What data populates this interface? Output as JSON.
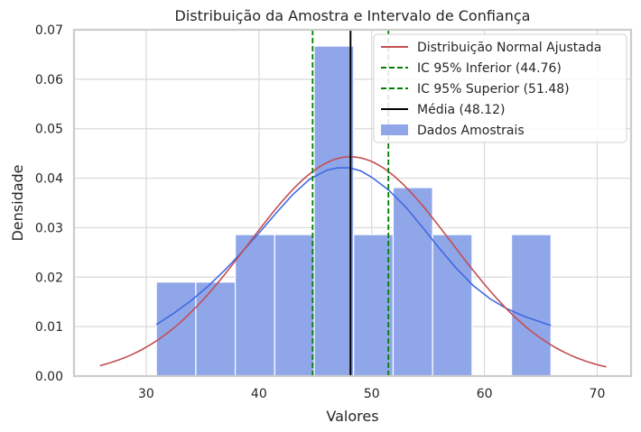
{
  "chart_data": {
    "type": "bar",
    "title": "Distribuição da Amostra e Intervalo de Confiança",
    "xlabel": "Valores",
    "ylabel": "Densidade",
    "xlim": [
      23.6,
      73.0
    ],
    "ylim": [
      0,
      0.07
    ],
    "x_ticks": [
      30,
      40,
      50,
      60,
      70
    ],
    "y_ticks": [
      0.0,
      0.01,
      0.02,
      0.03,
      0.04,
      0.05,
      0.06,
      0.07
    ],
    "y_tick_labels": [
      "0.00",
      "0.01",
      "0.02",
      "0.03",
      "0.04",
      "0.05",
      "0.06",
      "0.07"
    ],
    "grid": true,
    "legend_placement": "top-right",
    "histogram": {
      "name": "Dados Amostrais",
      "color": "#8fa6e8",
      "bin_edges": [
        30.9,
        34.4,
        37.9,
        41.4,
        44.9,
        48.4,
        51.9,
        55.4,
        58.9,
        62.4,
        65.9
      ],
      "values": [
        0.019,
        0.019,
        0.0286,
        0.0286,
        0.0667,
        0.0286,
        0.0381,
        0.0286,
        0.0,
        0.0286
      ]
    },
    "kde": {
      "color": "#4169e1",
      "x": [
        30.9,
        32.5,
        34.0,
        35.5,
        37.0,
        38.5,
        40.0,
        41.5,
        43.0,
        44.5,
        46.0,
        47.0,
        48.0,
        49.0,
        50.0,
        51.5,
        53.0,
        54.5,
        56.0,
        57.5,
        59.0,
        60.5,
        62.0,
        63.5,
        65.9
      ],
      "y": [
        0.0104,
        0.0128,
        0.0153,
        0.0182,
        0.0215,
        0.0251,
        0.0289,
        0.0329,
        0.0367,
        0.0398,
        0.0416,
        0.0421,
        0.0421,
        0.0415,
        0.0402,
        0.0376,
        0.0342,
        0.0301,
        0.0258,
        0.0218,
        0.0183,
        0.0156,
        0.0136,
        0.0121,
        0.0102
      ]
    },
    "series": [
      {
        "name": "Distribuição Normal Ajustada",
        "color": "#c44e52",
        "mean": 48.12,
        "sd": 9.0,
        "x_range": [
          25.9,
          70.8
        ]
      },
      {
        "name": "IC 95% Inferior (44.76)",
        "color": "#008000",
        "x": 44.76,
        "style": "dashed"
      },
      {
        "name": "IC 95% Superior (51.48)",
        "color": "#008000",
        "x": 51.48,
        "style": "dashed"
      },
      {
        "name": "Média (48.12)",
        "color": "#000000",
        "x": 48.12,
        "style": "solid"
      }
    ]
  }
}
